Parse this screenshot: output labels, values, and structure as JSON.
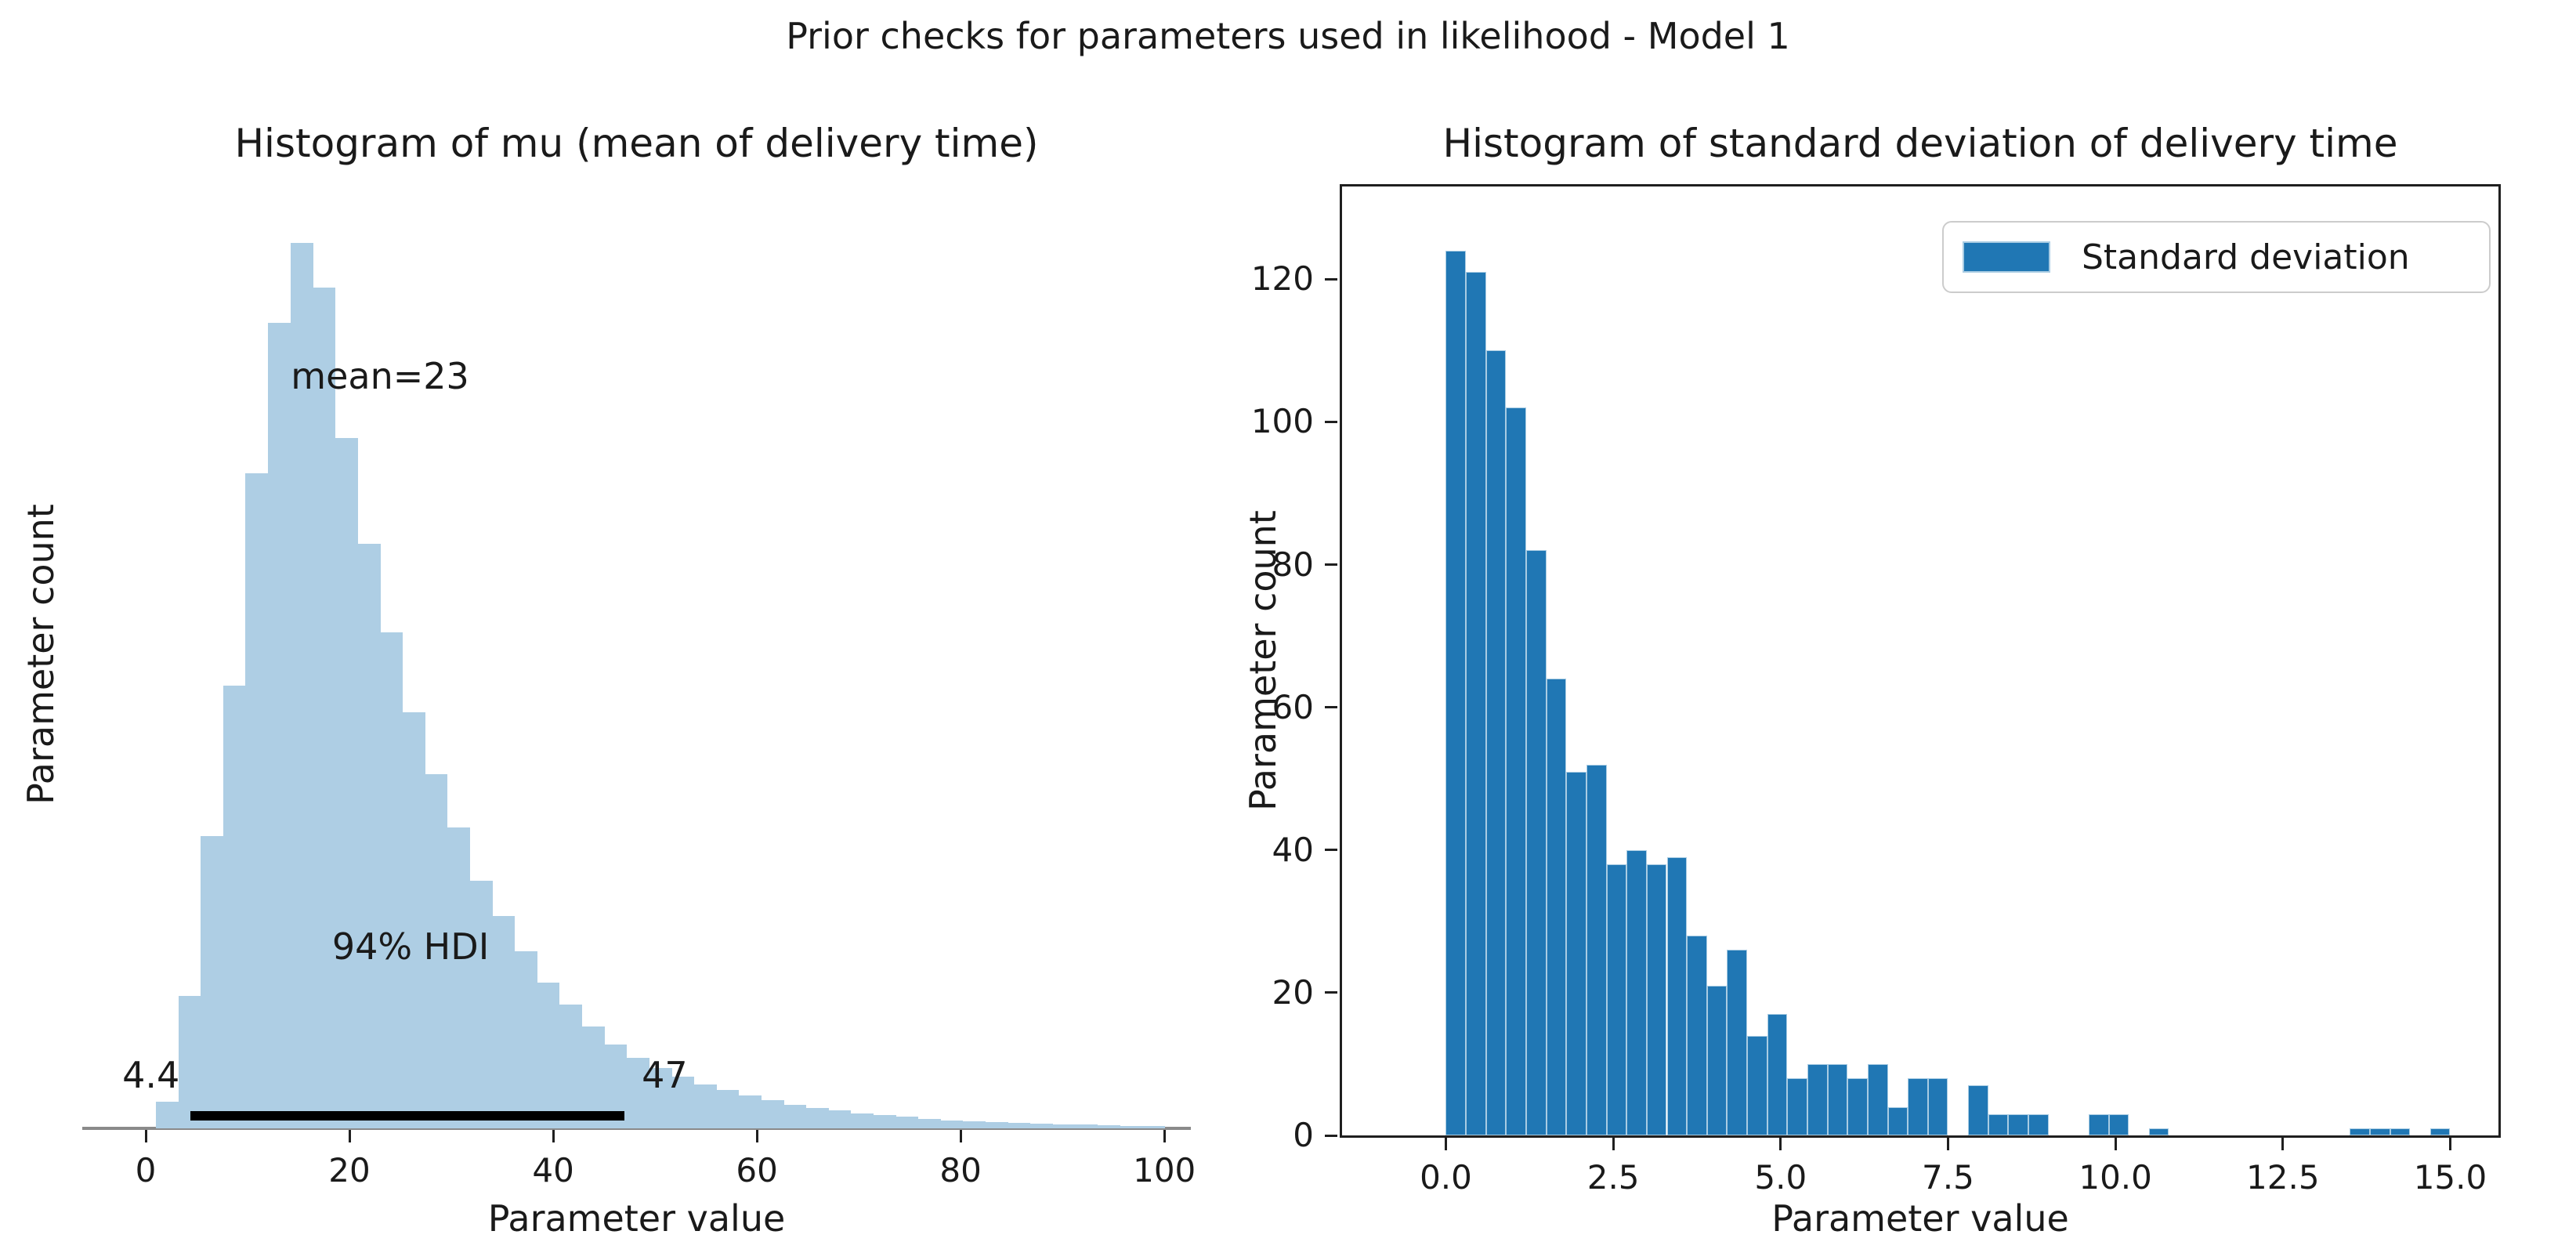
{
  "figure": {
    "suptitle": "Prior checks for parameters used in likelihood - Model 1"
  },
  "colors": {
    "left_bar": "#aecee4",
    "right_bar": "#2077b4",
    "right_bar_edge": "#a9cce3",
    "hdi_line": "#000000",
    "spine_left": "#8a8a8a",
    "spine_right": "#1f1f1f",
    "text": "#1a1a1a",
    "legend_border": "#cccccc"
  },
  "chart_data": [
    {
      "type": "bar",
      "subtype": "histogram",
      "title": "Histogram of mu (mean of delivery time)",
      "xlabel": "Parameter value",
      "ylabel": "Parameter count",
      "xlim": [
        -6.23,
        102.6
      ],
      "ylim": [
        0,
        1.071
      ],
      "grid": false,
      "y_axis_visible": false,
      "bar_color": "#aecee4",
      "bin_start": 1.0,
      "bin_width": 2.2,
      "x_ticks": [
        {
          "value": 0,
          "label": "0"
        },
        {
          "value": 20,
          "label": "20"
        },
        {
          "value": 40,
          "label": "40"
        },
        {
          "value": 60,
          "label": "60"
        },
        {
          "value": 80,
          "label": "80"
        },
        {
          "value": 100,
          "label": "100"
        }
      ],
      "heights_rel": [
        0.03,
        0.15,
        0.33,
        0.5,
        0.74,
        0.91,
        1.0,
        0.95,
        0.78,
        0.66,
        0.56,
        0.47,
        0.4,
        0.34,
        0.28,
        0.24,
        0.2,
        0.165,
        0.14,
        0.115,
        0.095,
        0.08,
        0.068,
        0.058,
        0.05,
        0.043,
        0.037,
        0.032,
        0.027,
        0.023,
        0.02,
        0.017,
        0.015,
        0.013,
        0.011,
        0.009,
        0.008,
        0.007,
        0.006,
        0.005,
        0.0045,
        0.004,
        0.0035,
        0.003,
        0.0025
      ],
      "annotations": {
        "mean_label": "mean=23",
        "mean_value": 23,
        "hdi_label": "94% HDI",
        "hdi_percent": 94,
        "hdi_low": 4.4,
        "hdi_high": 47,
        "hdi_low_label": "4.4",
        "hdi_high_label": "47"
      }
    },
    {
      "type": "bar",
      "subtype": "histogram",
      "title": "Histogram of standard deviation of delivery time",
      "xlabel": "Parameter value",
      "ylabel": "Parameter count",
      "xlim": [
        -1.55,
        15.72
      ],
      "ylim": [
        0,
        133
      ],
      "grid": false,
      "y_axis_visible": true,
      "bar_color": "#2077b4",
      "bar_edge_color": "#a9cce3",
      "bin_start": 0.0,
      "bin_width": 0.3,
      "x_ticks": [
        {
          "value": 0,
          "label": "0.0"
        },
        {
          "value": 2.5,
          "label": "2.5"
        },
        {
          "value": 5,
          "label": "5.0"
        },
        {
          "value": 7.5,
          "label": "7.5"
        },
        {
          "value": 10,
          "label": "10.0"
        },
        {
          "value": 12.5,
          "label": "12.5"
        },
        {
          "value": 15,
          "label": "15.0"
        }
      ],
      "y_ticks": [
        {
          "value": 0,
          "label": "0"
        },
        {
          "value": 20,
          "label": "20"
        },
        {
          "value": 40,
          "label": "40"
        },
        {
          "value": 60,
          "label": "60"
        },
        {
          "value": 80,
          "label": "80"
        },
        {
          "value": 100,
          "label": "100"
        },
        {
          "value": 120,
          "label": "120"
        }
      ],
      "counts": [
        124,
        121,
        110,
        102,
        82,
        64,
        51,
        52,
        38,
        40,
        38,
        39,
        28,
        21,
        26,
        14,
        17,
        8,
        10,
        10,
        8,
        10,
        4,
        8,
        8,
        0,
        7,
        3,
        3,
        3,
        0,
        0,
        3,
        3,
        0,
        1,
        0,
        0,
        0,
        0,
        0,
        0,
        0,
        0,
        0,
        1,
        1,
        1,
        0,
        1
      ],
      "legend": {
        "label": "Standard deviation",
        "position": "upper right"
      }
    }
  ]
}
